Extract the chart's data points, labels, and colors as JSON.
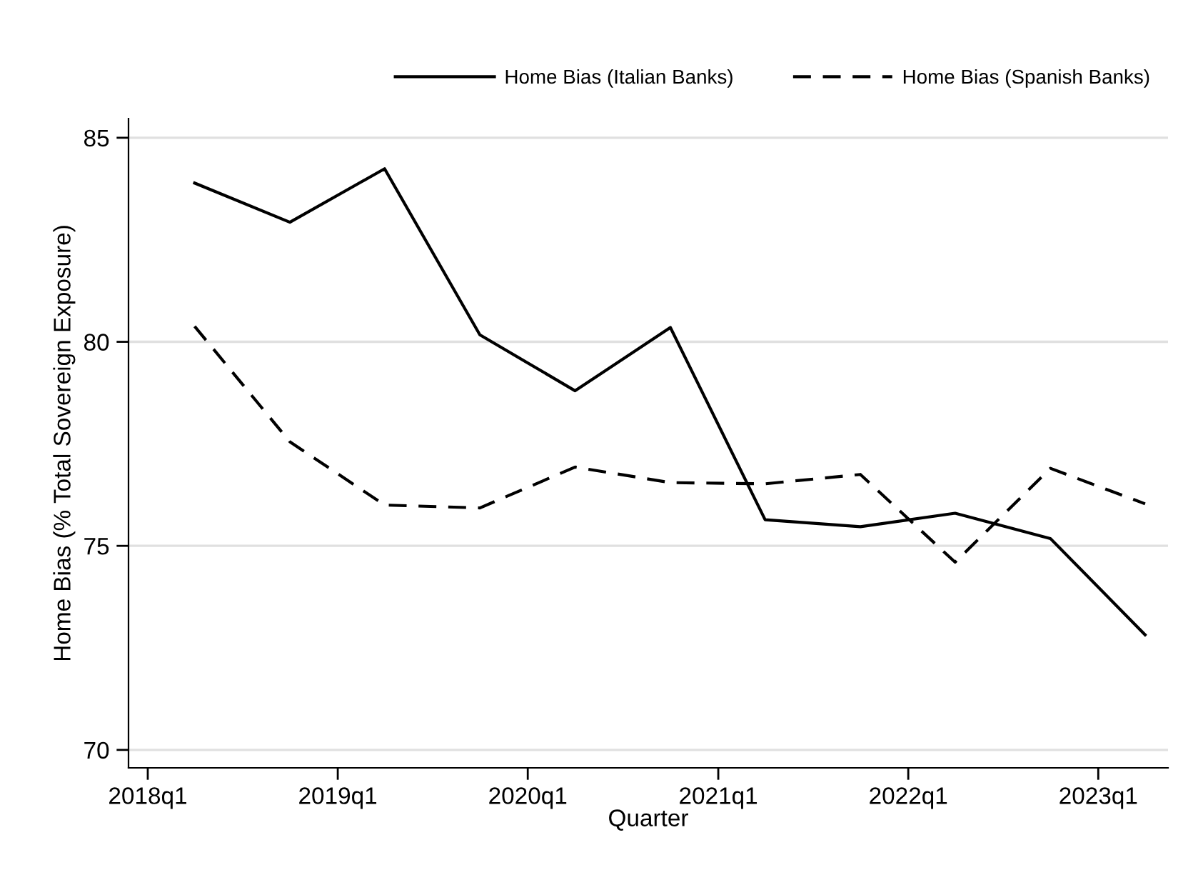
{
  "chart_data": {
    "type": "line",
    "xlabel": "Quarter",
    "ylabel": "Home Bias (% Total Sovereign Exposure)",
    "x": [
      "2018-04",
      "2018-10",
      "2019-04",
      "2019-10",
      "2020-04",
      "2020-10",
      "2021-04",
      "2021-10",
      "2022-04",
      "2022-10",
      "2023-04"
    ],
    "series": [
      {
        "name": "Home Bias (Italian Banks)",
        "color": "#000000",
        "line_style": "solid",
        "values": [
          83.89,
          82.93,
          84.24,
          80.17,
          78.8,
          80.35,
          75.64,
          75.47,
          75.8,
          75.18,
          72.82
        ]
      },
      {
        "name": "Home Bias (Spanish Banks)",
        "color": "#000000",
        "line_style": "dashed",
        "values": [
          80.38,
          77.55,
          76.0,
          75.93,
          76.93,
          76.55,
          76.52,
          76.75,
          74.6,
          76.9,
          76.03
        ]
      }
    ],
    "xlim": [
      "2017-11-25",
      "2023-05-15"
    ],
    "xticks": [
      {
        "value": "2018-01",
        "label": "2018q1"
      },
      {
        "value": "2019-01",
        "label": "2019q1"
      },
      {
        "value": "2020-01",
        "label": "2020q1"
      },
      {
        "value": "2021-01",
        "label": "2021q1"
      },
      {
        "value": "2022-01",
        "label": "2022q1"
      },
      {
        "value": "2023-01",
        "label": "2023q1"
      }
    ],
    "ylim": [
      69.56,
      85.47
    ],
    "yticks": [
      70,
      75,
      80,
      85
    ],
    "grid": "y",
    "legend": "top right",
    "marker": "none"
  }
}
